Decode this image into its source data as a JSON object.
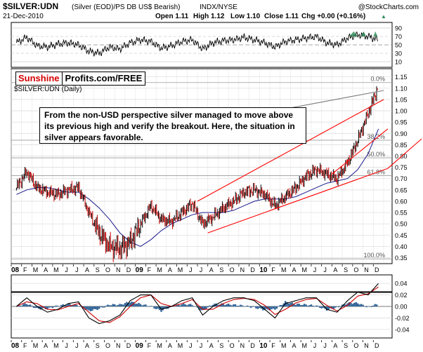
{
  "header": {
    "symbol": "$SILVER:UDN",
    "description": "(Silver (EOD)/PS DB US$ Bearish)",
    "exchange": "INDX/NYSE",
    "watermark": "@StockCharts.com",
    "date": "21-Dec-2010",
    "open": "Open 1.11",
    "high": "High 1.12",
    "low": "Low 1.10",
    "close": "Close 1.11",
    "chg": "Chg +0.00 (+0.16%)",
    "chg_arrow": "▲"
  },
  "logo": {
    "part1": "Sunshine",
    "part2": "Profits.com/FREE"
  },
  "annotation": "From the non-USD perspective silver managed to move above its previous high and verify the breakout. Here, the situation in silver appears favorable.",
  "rsi_panel": {
    "ticks": [
      "90",
      "70",
      "50",
      "30",
      "10"
    ],
    "ticks_drawn": [
      90,
      70,
      50,
      30,
      10
    ]
  },
  "main_panel": {
    "label": "$SILVER:UDN (Daily)",
    "yticks": [
      "1.15",
      "1.10",
      "1.05",
      "1.00",
      "0.95",
      "0.90",
      "0.85",
      "0.80",
      "0.75",
      "0.70",
      "0.65",
      "0.60",
      "0.55",
      "0.50",
      "0.45",
      "0.40",
      "0.35"
    ],
    "ytick_values": [
      1.15,
      1.1,
      1.05,
      1.0,
      0.95,
      0.9,
      0.85,
      0.8,
      0.75,
      0.7,
      0.65,
      0.6,
      0.55,
      0.5,
      0.45,
      0.4,
      0.35
    ],
    "fib_labels": [
      "0.0%",
      "38.2%",
      "50.0%",
      "61.8%",
      "100.0%"
    ],
    "fib_values": [
      1.125,
      0.87,
      0.792,
      0.713,
      0.345
    ]
  },
  "x_axis": {
    "labels": [
      "08",
      "F",
      "M",
      "A",
      "M",
      "J",
      "J",
      "A",
      "S",
      "O",
      "N",
      "D",
      "09",
      "F",
      "M",
      "A",
      "M",
      "J",
      "J",
      "A",
      "S",
      "O",
      "N",
      "D",
      "10",
      "F",
      "M",
      "A",
      "M",
      "J",
      "J",
      "A",
      "S",
      "O",
      "N",
      "D"
    ],
    "bold": [
      "08",
      "09",
      "10"
    ]
  },
  "macd_panel": {
    "ticks": [
      "0.04",
      "0.02",
      "0.00",
      "-0.02",
      "-0.04"
    ],
    "tick_values": [
      0.04,
      0.02,
      0.0,
      -0.02,
      -0.04
    ]
  },
  "colors": {
    "price": "#000000",
    "price_red": "#cc0000",
    "ma": "#1a1a8c",
    "trendline": "#ff0000",
    "grid": "#d9d9d9",
    "histogram": "#336699",
    "rsi_fill": "#2e8b57"
  },
  "chart_data": {
    "type": "line",
    "title": "$SILVER:UDN (Silver (EOD)/PS DB US$ Bearish) INDX/NYSE",
    "ylim": [
      0.33,
      1.18
    ],
    "x_months": [
      "08-Jan",
      "08-Feb",
      "08-Mar",
      "08-Apr",
      "08-May",
      "08-Jun",
      "08-Jul",
      "08-Aug",
      "08-Sep",
      "08-Oct",
      "08-Nov",
      "08-Dec",
      "09-Jan",
      "09-Feb",
      "09-Mar",
      "09-Apr",
      "09-May",
      "09-Jun",
      "09-Jul",
      "09-Aug",
      "09-Sep",
      "09-Oct",
      "09-Nov",
      "09-Dec",
      "10-Jan",
      "10-Feb",
      "10-Mar",
      "10-Apr",
      "10-May",
      "10-Jun",
      "10-Jul",
      "10-Aug",
      "10-Sep",
      "10-Oct",
      "10-Nov",
      "10-Dec"
    ],
    "series": [
      {
        "name": "$SILVER:UDN",
        "values": [
          0.66,
          0.73,
          0.66,
          0.64,
          0.63,
          0.65,
          0.66,
          0.55,
          0.46,
          0.4,
          0.39,
          0.42,
          0.5,
          0.58,
          0.52,
          0.51,
          0.55,
          0.59,
          0.5,
          0.53,
          0.57,
          0.6,
          0.64,
          0.65,
          0.63,
          0.58,
          0.62,
          0.66,
          0.71,
          0.74,
          0.72,
          0.7,
          0.77,
          0.87,
          0.99,
          1.11
        ]
      },
      {
        "values": [
          0.63,
          0.65,
          0.66,
          0.66,
          0.65,
          0.64,
          0.64,
          0.61,
          0.57,
          0.52,
          0.46,
          0.42,
          0.4,
          0.43,
          0.47,
          0.5,
          0.52,
          0.54,
          0.55,
          0.55,
          0.55,
          0.56,
          0.58,
          0.6,
          0.61,
          0.61,
          0.61,
          0.62,
          0.64,
          0.66,
          0.68,
          0.69,
          0.7,
          0.74,
          0.81,
          0.92
        ]
      }
    ],
    "rsi": [
      55,
      68,
      48,
      45,
      52,
      55,
      50,
      35,
      30,
      45,
      40,
      55,
      62,
      58,
      42,
      48,
      58,
      62,
      40,
      55,
      60,
      62,
      68,
      62,
      55,
      45,
      58,
      62,
      66,
      70,
      55,
      50,
      66,
      74,
      70,
      62
    ],
    "macd": [
      0.0,
      0.015,
      0.0,
      -0.01,
      -0.005,
      0.005,
      0.008,
      -0.02,
      -0.03,
      -0.025,
      -0.015,
      0.01,
      0.02,
      0.02,
      -0.005,
      0.0,
      0.01,
      0.015,
      -0.015,
      0.0,
      0.01,
      0.015,
      0.015,
      0.01,
      -0.005,
      -0.02,
      0.005,
      0.01,
      0.015,
      0.015,
      -0.005,
      -0.01,
      0.01,
      0.025,
      0.02,
      0.04
    ],
    "macd_signal": [
      0.0,
      0.008,
      0.005,
      -0.005,
      -0.006,
      0.0,
      0.005,
      -0.01,
      -0.025,
      -0.028,
      -0.018,
      0.0,
      0.015,
      0.02,
      0.005,
      0.0,
      0.005,
      0.012,
      -0.005,
      -0.005,
      0.005,
      0.012,
      0.014,
      0.012,
      0.002,
      -0.014,
      -0.005,
      0.006,
      0.012,
      0.014,
      0.002,
      -0.008,
      0.002,
      0.018,
      0.022,
      0.034
    ],
    "macd_hist": [
      0.0,
      0.005,
      -0.004,
      -0.004,
      0.001,
      0.004,
      0.002,
      -0.008,
      -0.004,
      0.003,
      0.003,
      0.008,
      0.004,
      0.0,
      -0.008,
      0.0,
      0.004,
      0.003,
      -0.008,
      0.004,
      0.004,
      0.003,
      0.001,
      -0.002,
      -0.006,
      -0.005,
      0.008,
      0.004,
      0.003,
      0.001,
      -0.006,
      -0.002,
      0.006,
      0.006,
      -0.002,
      0.005
    ],
    "channel": {
      "upper": [
        [
          17.5,
          0.6
        ],
        [
          35.5,
          1.05
        ]
      ],
      "lower": [
        [
          18.5,
          0.46
        ],
        [
          35.9,
          0.745
        ]
      ],
      "lower_parallel": [
        [
          30.5,
          0.72
        ],
        [
          35.9,
          0.92
        ]
      ],
      "breakout": [
        [
          25.0,
          1.0
        ],
        [
          35.5,
          1.09
        ]
      ]
    }
  }
}
